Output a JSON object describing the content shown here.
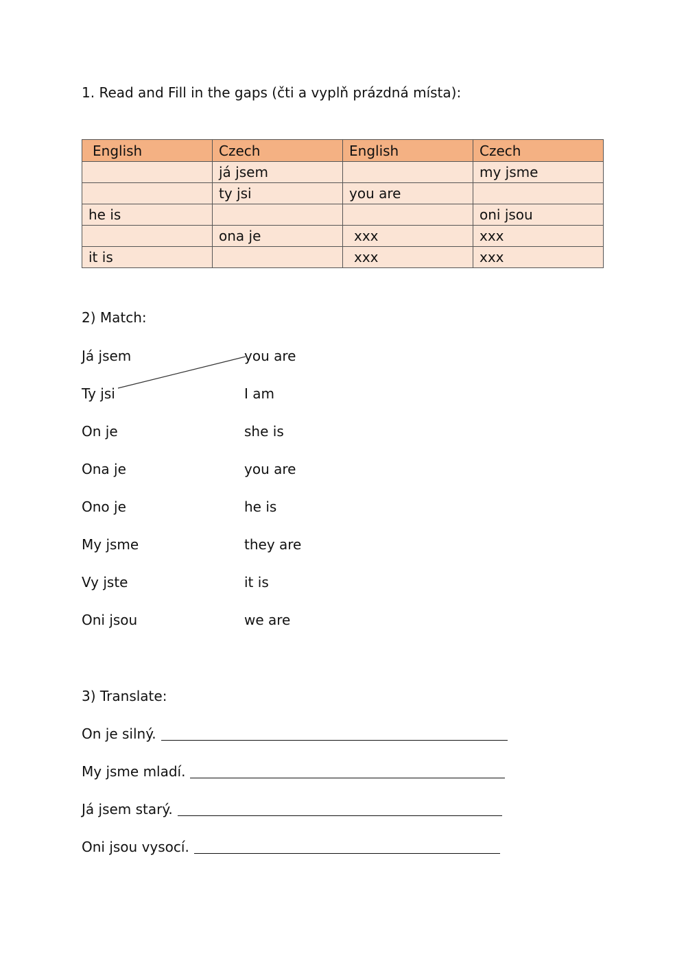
{
  "section1": {
    "title": "1. Read and Fill in the gaps (čti a vyplň prázdná místa):",
    "headers": [
      "English",
      "Czech",
      "English",
      "Czech"
    ],
    "rows": [
      [
        "",
        "já jsem",
        "",
        "my jsme"
      ],
      [
        "",
        "ty jsi",
        "you are",
        ""
      ],
      [
        "he is",
        "",
        "",
        "oni jsou"
      ],
      [
        "",
        "ona je",
        "xxx",
        "xxx"
      ],
      [
        "it is",
        "",
        "xxx",
        "xxx"
      ]
    ],
    "colors": {
      "header": "#f4b183",
      "row": "#fbe4d5"
    }
  },
  "section2": {
    "title": "2) Match:",
    "left": [
      "Já jsem",
      "Ty jsi",
      "On je",
      "Ona je",
      "Ono je",
      "My jsme",
      "Vy jste",
      "Oni jsou"
    ],
    "right": [
      "you are",
      "I am",
      "she is",
      "you are",
      "he is",
      "they are",
      "it is",
      "we are"
    ]
  },
  "section3": {
    "title": "3) Translate:",
    "items": [
      "On je silný.",
      "My jsme mladí.",
      "Já jsem starý.",
      "Oni jsou vysocí."
    ]
  }
}
